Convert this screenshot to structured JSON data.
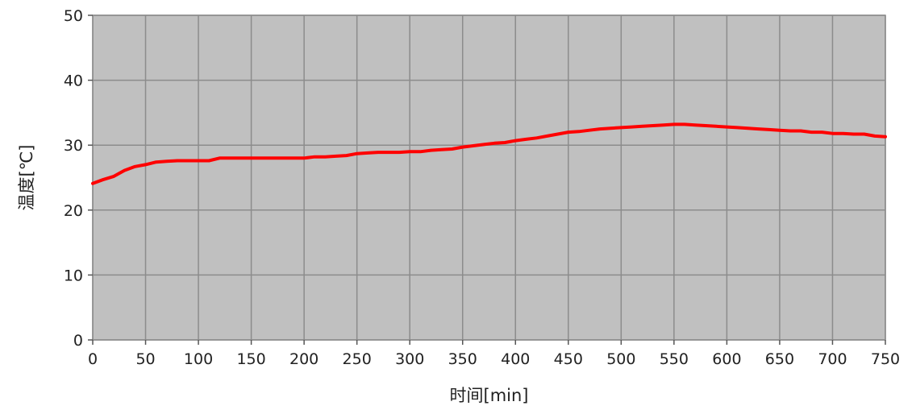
{
  "chart_data": {
    "type": "line",
    "title": "",
    "xlabel": "时间[min]",
    "ylabel": "温度[℃]",
    "xlim": [
      0,
      750
    ],
    "ylim": [
      0,
      50
    ],
    "x_ticks": [
      0,
      50,
      100,
      150,
      200,
      250,
      300,
      350,
      400,
      450,
      500,
      550,
      600,
      650,
      700,
      750
    ],
    "y_ticks": [
      0,
      10,
      20,
      30,
      40,
      50
    ],
    "grid": true,
    "plot_background": "#c0c0c0",
    "grid_color": "#8c8c8c",
    "series": [
      {
        "color": "#ff0000",
        "x": [
          0,
          10,
          20,
          30,
          40,
          50,
          60,
          70,
          80,
          90,
          100,
          110,
          120,
          130,
          140,
          150,
          160,
          170,
          180,
          190,
          200,
          210,
          220,
          230,
          240,
          250,
          260,
          270,
          280,
          290,
          300,
          310,
          320,
          330,
          340,
          350,
          360,
          370,
          380,
          390,
          400,
          410,
          420,
          430,
          440,
          450,
          460,
          470,
          480,
          490,
          500,
          510,
          520,
          530,
          540,
          550,
          560,
          570,
          580,
          590,
          600,
          610,
          620,
          630,
          640,
          650,
          660,
          670,
          680,
          690,
          700,
          710,
          720,
          730,
          740,
          750
        ],
        "y": [
          24.1,
          24.7,
          25.2,
          26.1,
          26.7,
          27.0,
          27.4,
          27.5,
          27.6,
          27.6,
          27.6,
          27.6,
          28.0,
          28.0,
          28.0,
          28.0,
          28.0,
          28.0,
          28.0,
          28.0,
          28.0,
          28.2,
          28.2,
          28.3,
          28.4,
          28.7,
          28.8,
          28.9,
          28.9,
          28.9,
          29.0,
          29.0,
          29.2,
          29.3,
          29.4,
          29.7,
          29.9,
          30.1,
          30.3,
          30.4,
          30.7,
          30.9,
          31.1,
          31.4,
          31.7,
          32.0,
          32.1,
          32.3,
          32.5,
          32.6,
          32.7,
          32.8,
          32.9,
          33.0,
          33.1,
          33.2,
          33.2,
          33.1,
          33.0,
          32.9,
          32.8,
          32.7,
          32.6,
          32.5,
          32.4,
          32.3,
          32.2,
          32.2,
          32.0,
          32.0,
          31.8,
          31.8,
          31.7,
          31.7,
          31.4,
          31.3
        ]
      }
    ]
  }
}
